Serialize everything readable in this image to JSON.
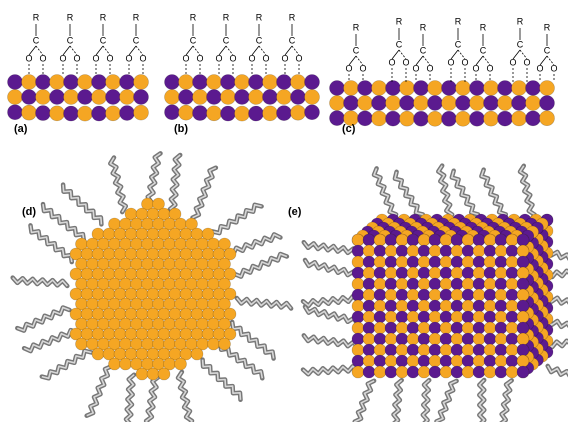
{
  "panels": {
    "a": "(a)",
    "b": "(b)",
    "c": "(c)",
    "d": "(d)",
    "e": "(e)"
  },
  "ligand": {
    "r": "R",
    "c": "C",
    "o": "O"
  }
}
